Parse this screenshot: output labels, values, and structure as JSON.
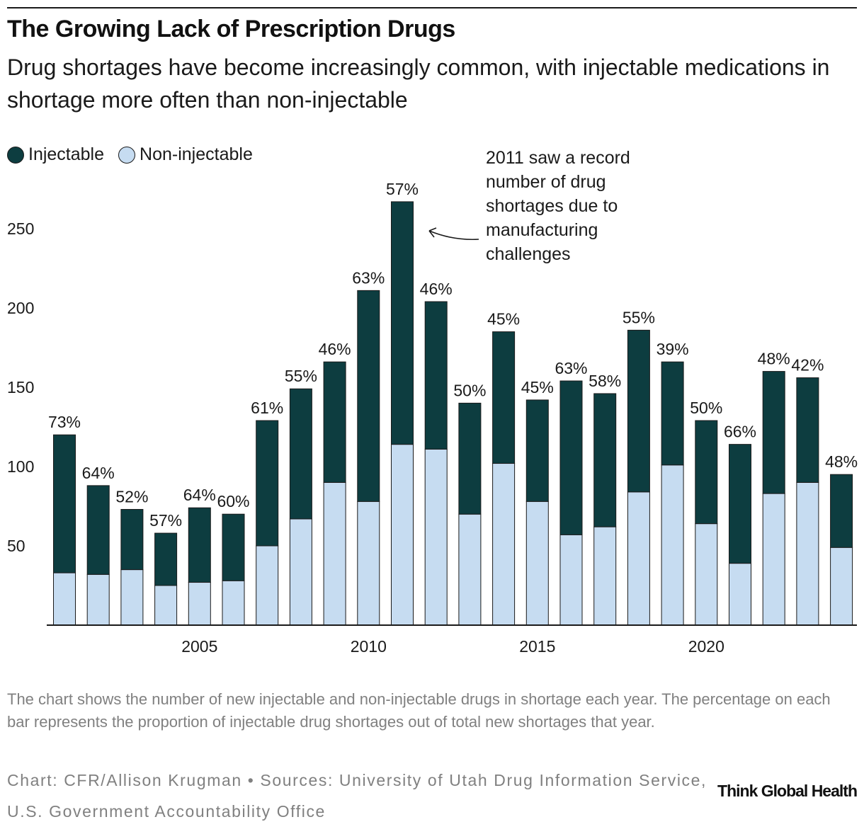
{
  "title": "The Growing Lack of Prescription Drugs",
  "subtitle": "Drug shortages have become increasingly common, with injectable medications in shortage more often than non-injectable",
  "legend": {
    "injectable": "Injectable",
    "non_injectable": "Non-injectable"
  },
  "annotation": "2011 saw a record number of drug shortages due to manufacturing challenges",
  "note": "The chart shows the number of new injectable and non-injectable drugs in shortage each year. The percentage on each bar represents the proportion of injectable drug shortages out of total new shortages that year.",
  "credit": "Chart: CFR/Allison Krugman • Sources: University of Utah Drug Information Service, U.S. Government Accountability Office",
  "brand": "Think Global Health",
  "colors": {
    "injectable": "#0d3d40",
    "non_injectable": "#c6dcf1",
    "axis": "#1a1a1a",
    "text": "#1a1a1a"
  },
  "chart_data": {
    "type": "bar",
    "stacked": true,
    "categories": [
      2001,
      2002,
      2003,
      2004,
      2005,
      2006,
      2007,
      2008,
      2009,
      2010,
      2011,
      2012,
      2013,
      2014,
      2015,
      2016,
      2017,
      2018,
      2019,
      2020,
      2021,
      2022,
      2023,
      2024
    ],
    "series": [
      {
        "name": "Non-injectable",
        "values": [
          33,
          32,
          35,
          25,
          27,
          28,
          50,
          67,
          90,
          78,
          114,
          111,
          70,
          102,
          78,
          57,
          62,
          84,
          101,
          64,
          39,
          83,
          90,
          49
        ]
      },
      {
        "name": "Injectable",
        "values": [
          87,
          56,
          38,
          33,
          47,
          42,
          79,
          82,
          76,
          133,
          153,
          93,
          70,
          83,
          64,
          97,
          84,
          102,
          65,
          65,
          75,
          77,
          66,
          46
        ]
      }
    ],
    "percent_labels": [
      "73%",
      "64%",
      "52%",
      "57%",
      "64%",
      "60%",
      "61%",
      "55%",
      "46%",
      "63%",
      "57%",
      "46%",
      "50%",
      "45%",
      "45%",
      "63%",
      "58%",
      "55%",
      "39%",
      "50%",
      "66%",
      "48%",
      "42%",
      "48%"
    ],
    "x_ticks": [
      "2005",
      "2010",
      "2015",
      "2020"
    ],
    "y_ticks": [
      "50",
      "100",
      "150",
      "200",
      "250"
    ],
    "xlabel": "",
    "ylabel": "",
    "ylim": [
      0,
      280
    ],
    "grid": false,
    "legend": "top-left"
  }
}
